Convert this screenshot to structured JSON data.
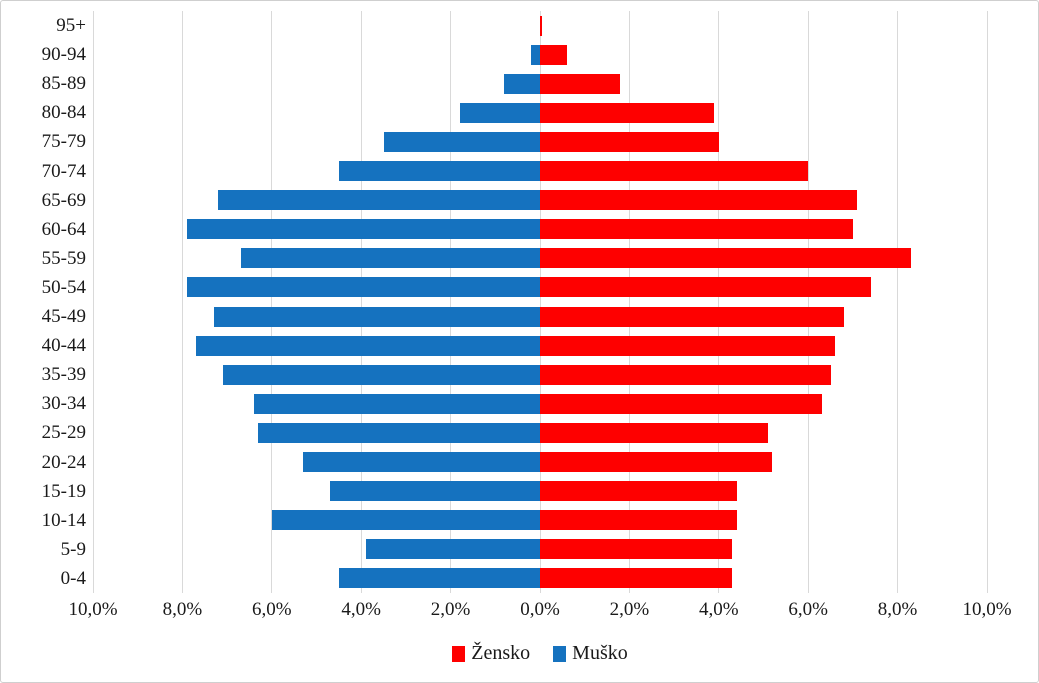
{
  "chart_data": {
    "type": "bar",
    "subtype": "population-pyramid",
    "title": "",
    "categories": [
      "95+",
      "90-94",
      "85-89",
      "80-84",
      "75-79",
      "70-74",
      "65-69",
      "60-64",
      "55-59",
      "50-54",
      "45-49",
      "40-44",
      "35-39",
      "30-34",
      "25-29",
      "20-24",
      "15-19",
      "10-14",
      "5-9",
      "0-4"
    ],
    "series": [
      {
        "name": "Žensko",
        "side": "right",
        "color": "#fe0000",
        "values": [
          0.05,
          0.6,
          1.8,
          3.9,
          4.0,
          6.0,
          7.1,
          7.0,
          8.3,
          7.4,
          6.8,
          6.6,
          6.5,
          6.3,
          5.1,
          5.2,
          4.4,
          4.4,
          4.3,
          4.3
        ]
      },
      {
        "name": "Muško",
        "side": "left",
        "color": "#1572bf",
        "values": [
          0.0,
          0.2,
          0.8,
          1.8,
          3.5,
          4.5,
          7.2,
          7.9,
          6.7,
          7.9,
          7.3,
          7.7,
          7.1,
          6.4,
          6.3,
          5.3,
          4.7,
          6.0,
          3.9,
          4.5
        ]
      }
    ],
    "x_tick_labels": [
      "10,0%",
      "8,0%",
      "6,0%",
      "4,0%",
      "2,0%",
      "0,0%",
      "2,0%",
      "4,0%",
      "6,0%",
      "8,0%",
      "10,0%"
    ],
    "x_max_each_side": 10.0,
    "x_tick_step": 2.0,
    "grid": true,
    "legend_position": "bottom"
  },
  "colors": {
    "female_bar": "#fe0000",
    "male_bar": "#1572bf",
    "gridline": "#d9d9d9",
    "text": "#1a1a1a",
    "background": "#ffffff",
    "border": "#cfcfcf"
  }
}
